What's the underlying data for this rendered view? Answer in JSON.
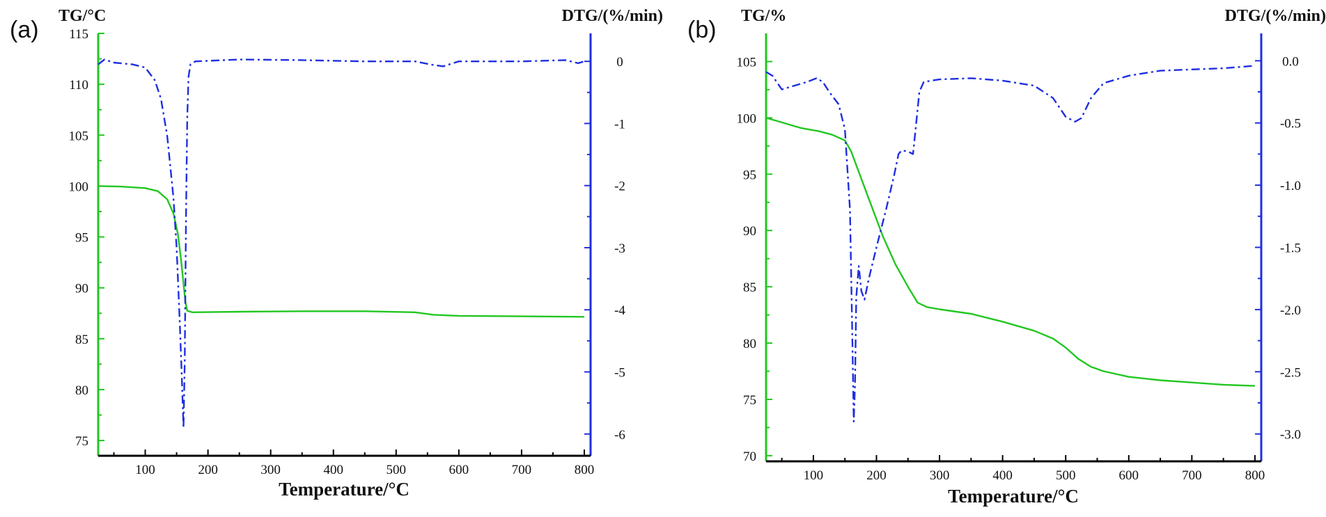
{
  "figure": {
    "colors": {
      "tg": "#22c722",
      "dtg": "#1f2fe0",
      "axis": "#000000"
    }
  },
  "chart_data": [
    {
      "type": "line",
      "panel_label": "(a)",
      "title": "",
      "xlabel": "Temperature/°C",
      "ylabel_left": "TG/°C",
      "ylabel_right": "DTG/(%/min)",
      "xlim": [
        25,
        810
      ],
      "ylim_left": [
        73.5,
        115
      ],
      "ylim_right": [
        -6.35,
        0.45
      ],
      "x_ticks": [
        100,
        200,
        300,
        400,
        500,
        600,
        700,
        800
      ],
      "y_left_ticks": [
        75,
        80,
        85,
        90,
        95,
        100,
        105,
        110,
        115
      ],
      "y_right_ticks": [
        0,
        -1,
        -2,
        -3,
        -4,
        -5,
        -6
      ],
      "grid": false,
      "series": [
        {
          "name": "TG",
          "axis": "left",
          "style": "solid",
          "points": [
            [
              25,
              100
            ],
            [
              60,
              99.95
            ],
            [
              100,
              99.8
            ],
            [
              120,
              99.5
            ],
            [
              135,
              98.7
            ],
            [
              145,
              97.3
            ],
            [
              152,
              95.3
            ],
            [
              157,
              92.8
            ],
            [
              161,
              90.4
            ],
            [
              164,
              88.6
            ],
            [
              167,
              87.75
            ],
            [
              175,
              87.6
            ],
            [
              250,
              87.65
            ],
            [
              350,
              87.7
            ],
            [
              450,
              87.7
            ],
            [
              530,
              87.6
            ],
            [
              560,
              87.35
            ],
            [
              600,
              87.25
            ],
            [
              700,
              87.2
            ],
            [
              800,
              87.15
            ]
          ]
        },
        {
          "name": "DTG",
          "axis": "right",
          "style": "dash-dot",
          "points": [
            [
              25,
              -0.05
            ],
            [
              35,
              0.03
            ],
            [
              50,
              -0.02
            ],
            [
              80,
              -0.05
            ],
            [
              100,
              -0.1
            ],
            [
              115,
              -0.3
            ],
            [
              125,
              -0.6
            ],
            [
              135,
              -1.2
            ],
            [
              145,
              -2.2
            ],
            [
              150,
              -3.0
            ],
            [
              155,
              -4.2
            ],
            [
              158,
              -5.0
            ],
            [
              161,
              -5.9
            ],
            [
              163,
              -4.8
            ],
            [
              165,
              -2.5
            ],
            [
              167,
              -0.9
            ],
            [
              169,
              -0.25
            ],
            [
              172,
              -0.05
            ],
            [
              180,
              0.0
            ],
            [
              250,
              0.03
            ],
            [
              350,
              0.02
            ],
            [
              450,
              0.0
            ],
            [
              530,
              0.0
            ],
            [
              560,
              -0.06
            ],
            [
              575,
              -0.08
            ],
            [
              600,
              0.0
            ],
            [
              700,
              0.0
            ],
            [
              770,
              0.02
            ],
            [
              790,
              -0.03
            ],
            [
              800,
              0.0
            ]
          ]
        }
      ]
    },
    {
      "type": "line",
      "panel_label": "(b)",
      "title": "",
      "xlabel": "Temperature/°C",
      "ylabel_left": "TG/%",
      "ylabel_right": "DTG/(%/min)",
      "xlim": [
        25,
        810
      ],
      "ylim_left": [
        69.5,
        107.5
      ],
      "ylim_right": [
        -3.22,
        0.22
      ],
      "x_ticks": [
        100,
        200,
        300,
        400,
        500,
        600,
        700,
        800
      ],
      "y_left_ticks": [
        70,
        75,
        80,
        85,
        90,
        95,
        100,
        105
      ],
      "y_right_ticks": [
        0.0,
        -0.5,
        -1.0,
        -1.5,
        -2.0,
        -2.5,
        -3.0
      ],
      "y_right_tick_labels": [
        "0.0",
        "-0.5",
        "-1.0",
        "-1.5",
        "-2.0",
        "-2.5",
        "-3.0"
      ],
      "grid": false,
      "series": [
        {
          "name": "TG",
          "axis": "left",
          "style": "solid",
          "points": [
            [
              25,
              100
            ],
            [
              50,
              99.6
            ],
            [
              80,
              99.1
            ],
            [
              110,
              98.8
            ],
            [
              130,
              98.5
            ],
            [
              150,
              98.0
            ],
            [
              160,
              97.0
            ],
            [
              170,
              95.5
            ],
            [
              190,
              92.5
            ],
            [
              210,
              89.5
            ],
            [
              230,
              87.0
            ],
            [
              250,
              85.0
            ],
            [
              265,
              83.6
            ],
            [
              280,
              83.2
            ],
            [
              300,
              83.0
            ],
            [
              350,
              82.6
            ],
            [
              400,
              81.9
            ],
            [
              450,
              81.1
            ],
            [
              480,
              80.4
            ],
            [
              500,
              79.6
            ],
            [
              520,
              78.6
            ],
            [
              540,
              77.9
            ],
            [
              560,
              77.5
            ],
            [
              600,
              77.0
            ],
            [
              650,
              76.7
            ],
            [
              700,
              76.5
            ],
            [
              750,
              76.3
            ],
            [
              800,
              76.2
            ]
          ]
        },
        {
          "name": "DTG",
          "axis": "right",
          "style": "dash-dot",
          "points": [
            [
              25,
              -0.09
            ],
            [
              35,
              -0.12
            ],
            [
              50,
              -0.23
            ],
            [
              70,
              -0.2
            ],
            [
              90,
              -0.17
            ],
            [
              105,
              -0.14
            ],
            [
              115,
              -0.17
            ],
            [
              125,
              -0.25
            ],
            [
              140,
              -0.35
            ],
            [
              150,
              -0.55
            ],
            [
              158,
              -1.2
            ],
            [
              162,
              -2.3
            ],
            [
              164,
              -2.9
            ],
            [
              166,
              -2.6
            ],
            [
              168,
              -1.9
            ],
            [
              172,
              -1.65
            ],
            [
              176,
              -1.85
            ],
            [
              181,
              -1.92
            ],
            [
              188,
              -1.75
            ],
            [
              200,
              -1.5
            ],
            [
              215,
              -1.2
            ],
            [
              228,
              -0.92
            ],
            [
              235,
              -0.75
            ],
            [
              240,
              -0.72
            ],
            [
              250,
              -0.73
            ],
            [
              258,
              -0.75
            ],
            [
              262,
              -0.55
            ],
            [
              268,
              -0.25
            ],
            [
              275,
              -0.17
            ],
            [
              300,
              -0.15
            ],
            [
              350,
              -0.14
            ],
            [
              400,
              -0.16
            ],
            [
              450,
              -0.2
            ],
            [
              480,
              -0.3
            ],
            [
              500,
              -0.45
            ],
            [
              515,
              -0.49
            ],
            [
              525,
              -0.46
            ],
            [
              540,
              -0.3
            ],
            [
              560,
              -0.18
            ],
            [
              600,
              -0.12
            ],
            [
              650,
              -0.08
            ],
            [
              700,
              -0.07
            ],
            [
              750,
              -0.06
            ],
            [
              800,
              -0.04
            ]
          ]
        }
      ]
    }
  ]
}
